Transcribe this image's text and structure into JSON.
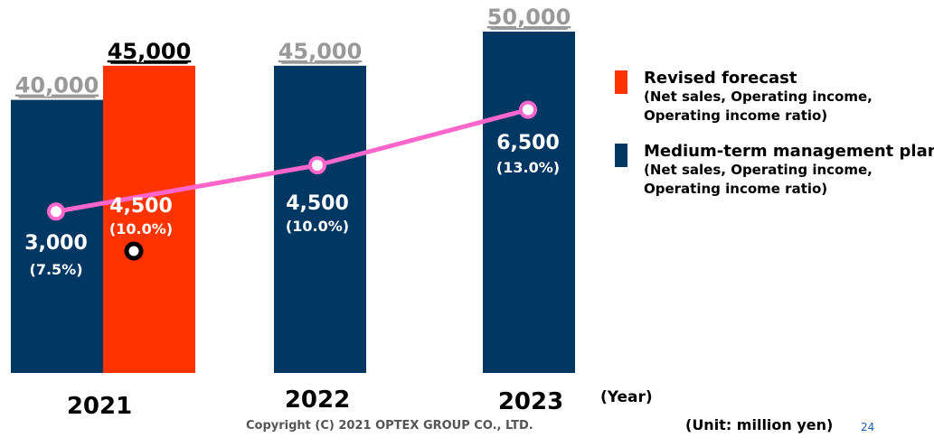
{
  "chart_data": {
    "type": "bar",
    "categories": [
      "2021",
      "2022",
      "2023"
    ],
    "x_unit_label": "(Year)",
    "unit_label": "(Unit: million yen)",
    "net_sales": [
      {
        "year": "2021",
        "series": "Medium-term management plan",
        "value": 40000,
        "label": "40,000",
        "style": "gray"
      },
      {
        "year": "2021",
        "series": "Revised forecast",
        "value": 45000,
        "label": "45,000",
        "style": "black"
      },
      {
        "year": "2022",
        "series": "Medium-term management plan",
        "value": 45000,
        "label": "45,000",
        "style": "gray"
      },
      {
        "year": "2023",
        "series": "Medium-term management plan",
        "value": 50000,
        "label": "50,000",
        "style": "gray"
      }
    ],
    "operating_income": [
      {
        "year": "2021",
        "series": "Medium-term management plan",
        "value": 3000,
        "label": "3,000",
        "ratio": 7.5,
        "ratio_label": "(7.5%)"
      },
      {
        "year": "2021",
        "series": "Revised forecast",
        "value": 4500,
        "label": "4,500",
        "ratio": 10.0,
        "ratio_label": "(10.0%)"
      },
      {
        "year": "2022",
        "series": "Medium-term management plan",
        "value": 4500,
        "label": "4,500",
        "ratio": 10.0,
        "ratio_label": "(10.0%)"
      },
      {
        "year": "2023",
        "series": "Medium-term management plan",
        "value": 6500,
        "label": "6,500",
        "ratio": 13.0,
        "ratio_label": "(13.0%)"
      }
    ],
    "legend": [
      {
        "name": "Revised forecast",
        "detail": [
          "(Net sales, Operating income,",
          "Operating income ratio)"
        ],
        "color": "#ff3300"
      },
      {
        "name": "Medium-term management plan",
        "detail": [
          "(Net sales, Operating income,",
          "Operating income ratio)"
        ],
        "color": "#003763"
      }
    ],
    "colors": {
      "plan": "#003763",
      "forecast": "#ff3300",
      "line": "#ff66cc",
      "plan_value_text": "#999999"
    }
  },
  "footer": {
    "copyright": "Copyright (C) 2021 OPTEX GROUP CO., LTD.",
    "page_number": "24"
  }
}
